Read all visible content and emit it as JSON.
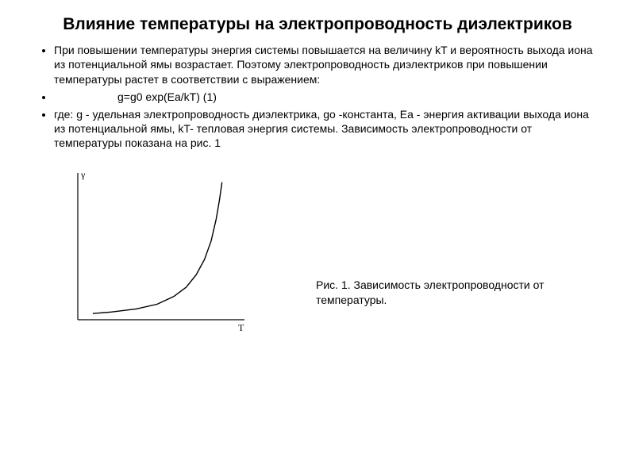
{
  "title": "Влияние температуры на электропроводность диэлектриков",
  "bullets": {
    "p1": "При повышении температуры энергия системы повышается на величину kT и вероятность выхода иона из потенциальной ямы возрастает. Поэтому электропроводность диэлектриков при повышении температуры растет в соответствии с выражением:",
    "formula": "g=g0 exp(Ea/kT)   (1)",
    "p2": "где: g - удельная электропроводность диэлектрика, go -константа, Ea - энергия активации выхода иона из потенциальной ямы, kT- тепловая энергия системы. Зависимость электропроводности от температуры показана на рис. 1"
  },
  "chart": {
    "type": "line",
    "y_axis_label": "γ",
    "x_axis_label": "T",
    "background_color": "#ffffff",
    "axis_color": "#000000",
    "curve_color": "#000000",
    "line_width": 1.4,
    "x_range": [
      0,
      200
    ],
    "y_range": [
      0,
      190
    ],
    "curve_points": [
      [
        18,
        182
      ],
      [
        40,
        180
      ],
      [
        70,
        176
      ],
      [
        95,
        170
      ],
      [
        115,
        160
      ],
      [
        130,
        148
      ],
      [
        142,
        132
      ],
      [
        152,
        112
      ],
      [
        160,
        88
      ],
      [
        166,
        60
      ],
      [
        170,
        35
      ],
      [
        173,
        12
      ]
    ]
  },
  "caption": "Рис. 1. Зависимость электропроводности от температуры."
}
